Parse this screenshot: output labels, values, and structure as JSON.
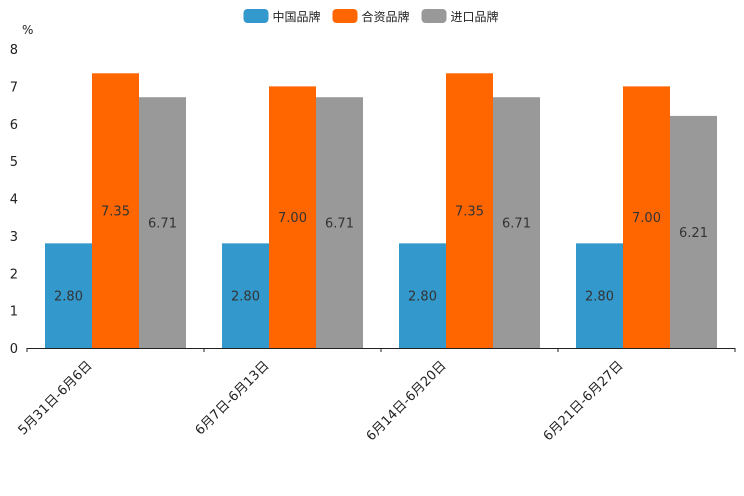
{
  "chart_data": {
    "type": "bar",
    "title": "",
    "xlabel": "",
    "ylabel": "%",
    "ylim": [
      0,
      8
    ],
    "yticks": [
      0,
      1,
      2,
      3,
      4,
      5,
      6,
      7,
      8
    ],
    "grid": false,
    "legend_position": "top-center",
    "categories": [
      "5月31日-6月6日",
      "6月7日-6月13日",
      "6月14日-6月20日",
      "6月21日-6月27日"
    ],
    "series": [
      {
        "name": "中国品牌",
        "color": "#3399cc",
        "values": [
          2.8,
          2.8,
          2.8,
          2.8
        ],
        "labels": [
          "2.80",
          "2.80",
          "2.80",
          "2.80"
        ]
      },
      {
        "name": "合资品牌",
        "color": "#ff6600",
        "values": [
          7.35,
          7.0,
          7.35,
          7.0
        ],
        "labels": [
          "7.35",
          "7.00",
          "7.35",
          "7.00"
        ]
      },
      {
        "name": "进口品牌",
        "color": "#999999",
        "values": [
          6.71,
          6.71,
          6.71,
          6.21
        ],
        "labels": [
          "6.71",
          "6.71",
          "6.71",
          "6.21"
        ]
      }
    ]
  }
}
